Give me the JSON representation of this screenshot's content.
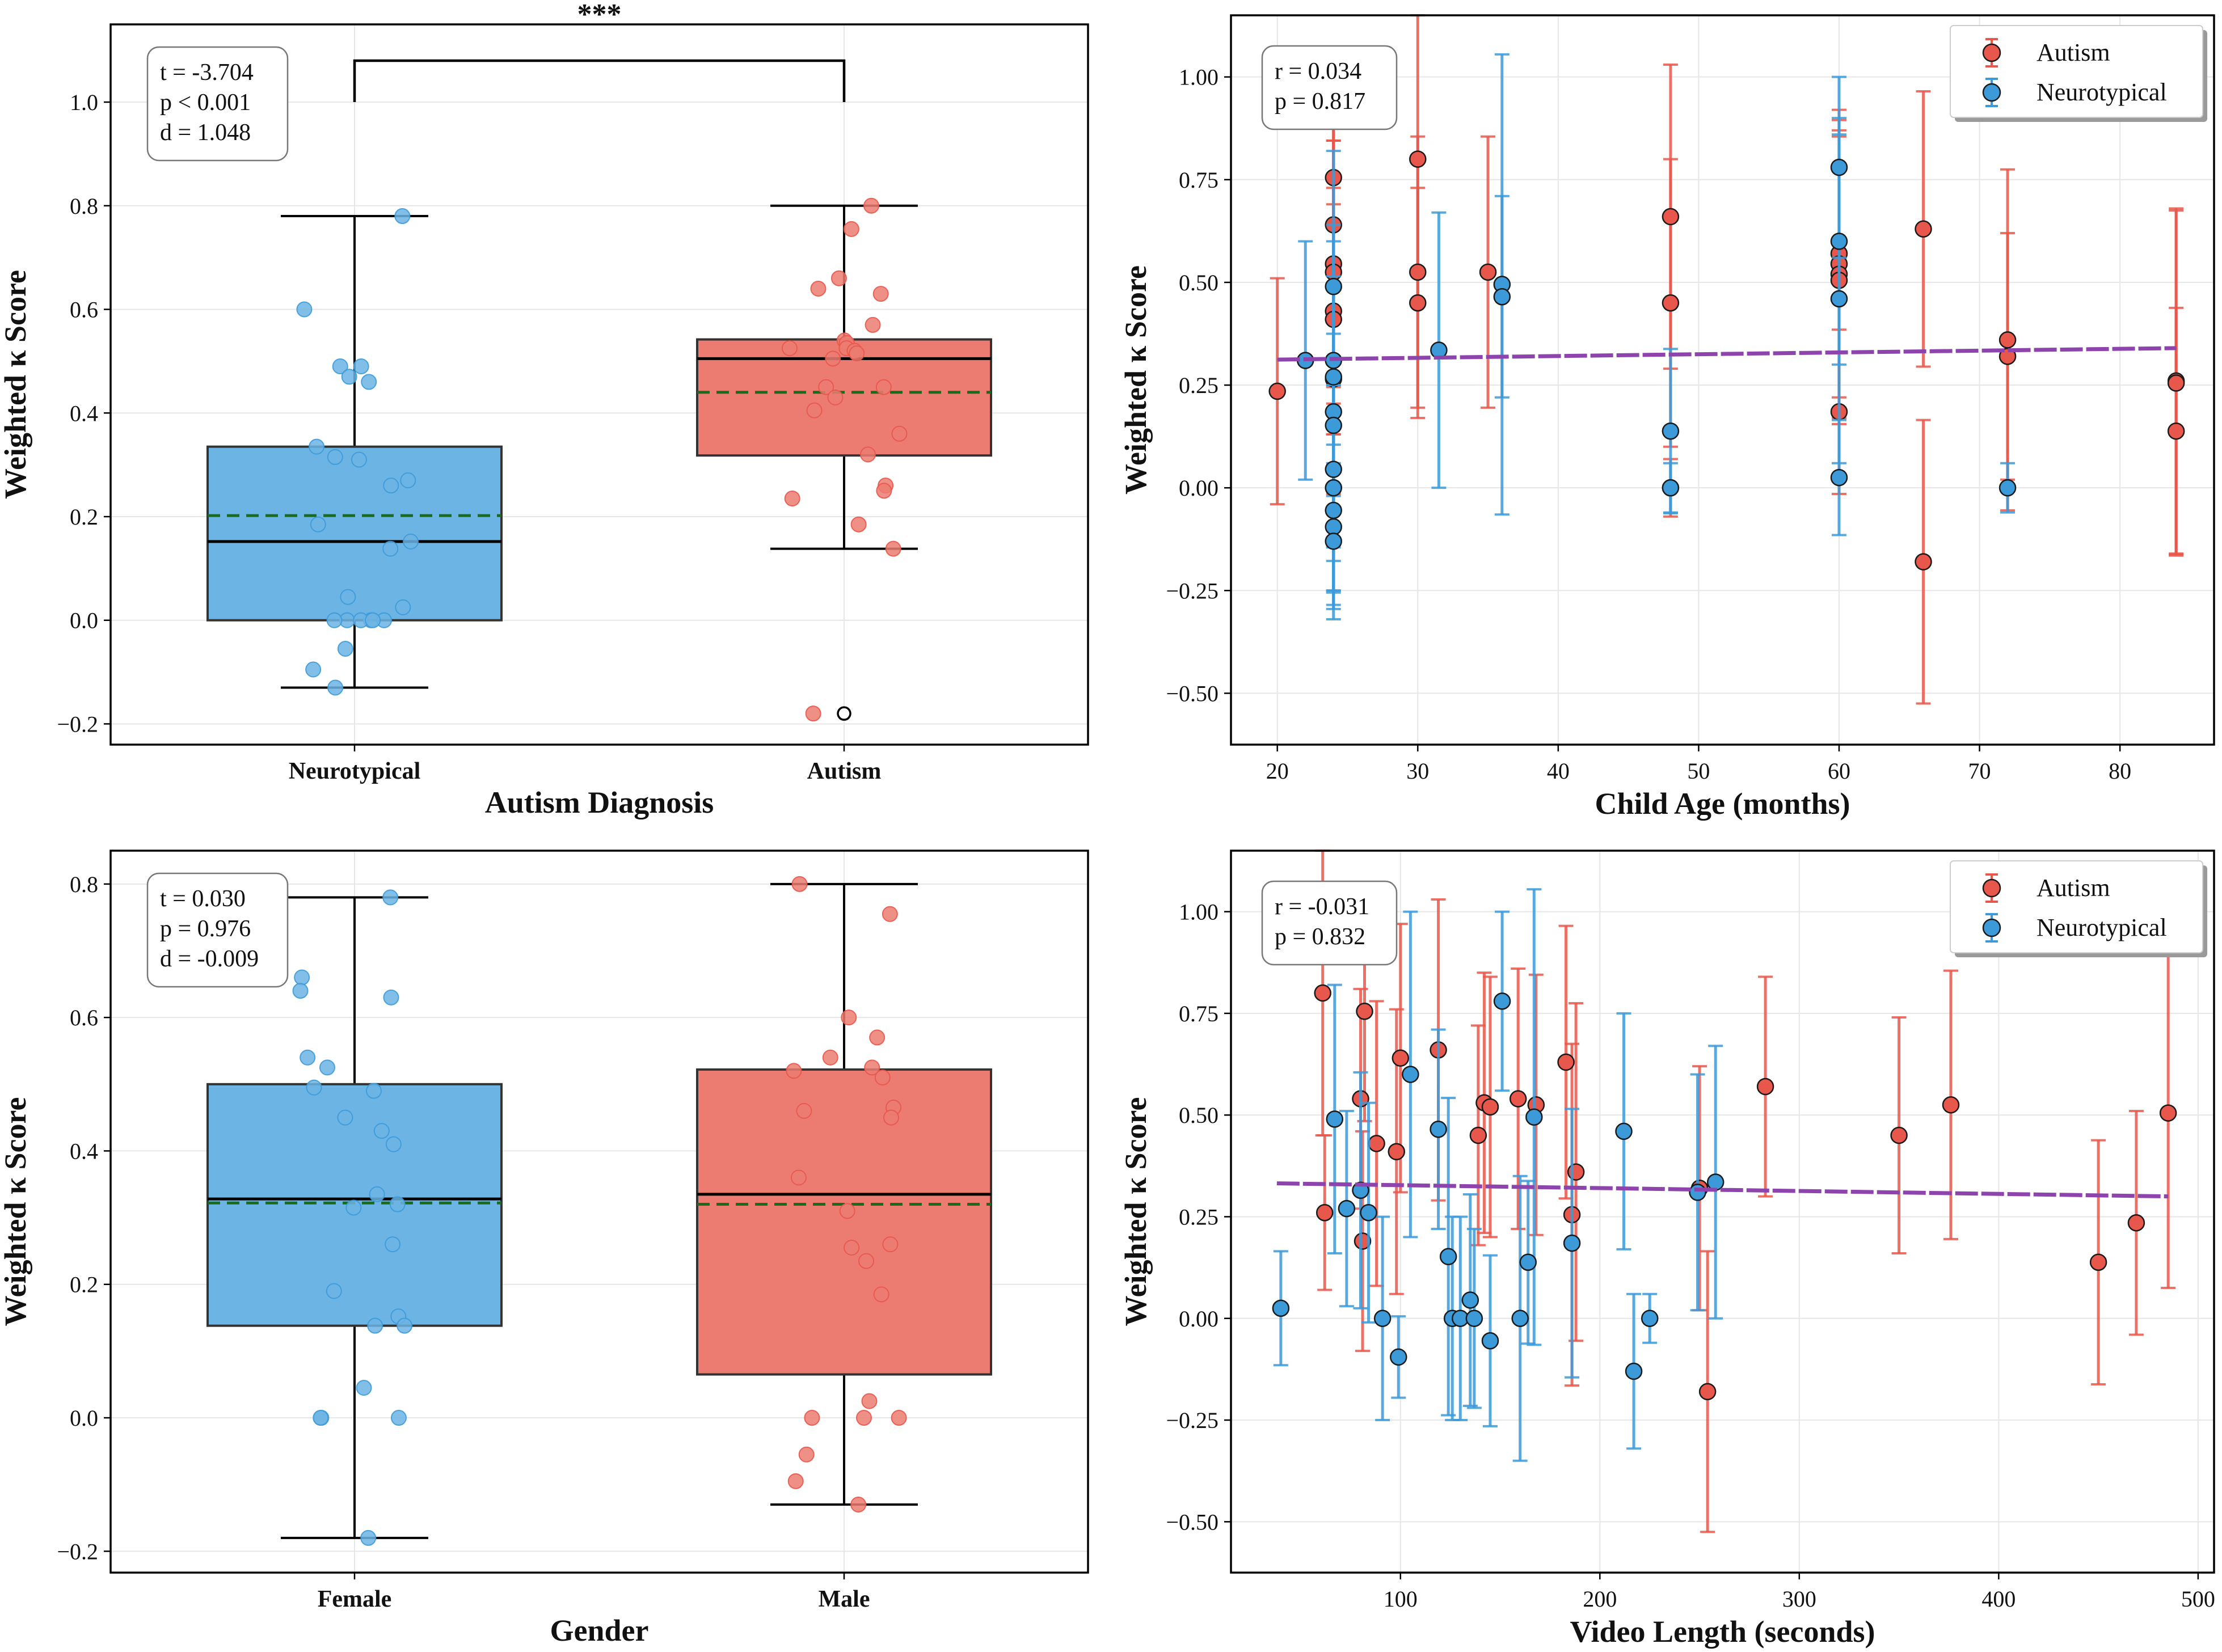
{
  "figure": {
    "background": "#ffffff"
  },
  "colors": {
    "autism": "#e8574b",
    "autism_fill": "#ec7c72",
    "neurotypical": "#3d9ad8",
    "neurotypical_fill": "#6cb4e4",
    "trend": "#8e44ad",
    "mean_line": "#1a6b1a"
  },
  "chart_data": [
    {
      "id": "diagnosis",
      "type": "box",
      "xlabel": "Autism Diagnosis",
      "ylabel": "Weighted κ Score",
      "ylim": [
        -0.24,
        1.15
      ],
      "yticks": [
        -0.2,
        0.0,
        0.2,
        0.4,
        0.6,
        0.8,
        1.0
      ],
      "ytick_labels": [
        "−0.2",
        "0.0",
        "0.2",
        "0.4",
        "0.6",
        "0.8",
        "1.0"
      ],
      "grid": true,
      "stats_text": [
        "t = -3.704",
        "p < 0.001",
        "d = 1.048"
      ],
      "significance": {
        "label": "***",
        "level": 1.08,
        "drop": 0.08
      },
      "groups": [
        {
          "label": "Neurotypical",
          "color": "neurotypical",
          "q1": 0.0,
          "median": 0.152,
          "q3": 0.335,
          "mean": 0.202,
          "whisker_low": -0.13,
          "whisker_high": 0.78,
          "outliers": [],
          "points": [
            0.78,
            0.6,
            0.49,
            0.49,
            0.47,
            0.46,
            0.335,
            0.315,
            0.31,
            0.27,
            0.26,
            0.185,
            0.152,
            0.138,
            0.045,
            0.025,
            0.0,
            0.0,
            0.0,
            0.0,
            0.0,
            0.0,
            -0.055,
            -0.095,
            -0.13
          ]
        },
        {
          "label": "Autism",
          "color": "autism",
          "q1": 0.318,
          "median": 0.505,
          "q3": 0.542,
          "mean": 0.44,
          "whisker_low": 0.138,
          "whisker_high": 0.8,
          "outliers": [
            -0.18
          ],
          "points": [
            0.8,
            0.755,
            0.66,
            0.64,
            0.63,
            0.57,
            0.54,
            0.535,
            0.525,
            0.525,
            0.52,
            0.515,
            0.505,
            0.45,
            0.45,
            0.43,
            0.405,
            0.36,
            0.32,
            0.26,
            0.25,
            0.235,
            0.185,
            0.138,
            -0.18
          ]
        }
      ]
    },
    {
      "id": "age",
      "type": "scatter",
      "xlabel": "Child Age (months)",
      "ylabel": "Weighted κ Score",
      "xlim": [
        16.7,
        86.7
      ],
      "ylim": [
        -0.625,
        1.15
      ],
      "xticks": [
        20,
        30,
        40,
        50,
        60,
        70,
        80
      ],
      "xtick_labels": [
        "20",
        "30",
        "40",
        "50",
        "60",
        "70",
        "80"
      ],
      "yticks": [
        -0.5,
        -0.25,
        0.0,
        0.25,
        0.5,
        0.75,
        1.0
      ],
      "ytick_labels": [
        "−0.50",
        "−0.25",
        "0.00",
        "0.25",
        "0.50",
        "0.75",
        "1.00"
      ],
      "grid": true,
      "stats_text": [
        "r = 0.034",
        "p = 0.817"
      ],
      "legend": {
        "position": "top-right",
        "entries": [
          "Autism",
          "Neurotypical"
        ]
      },
      "trend": {
        "x": [
          20,
          84
        ],
        "y": [
          0.312,
          0.34
        ]
      },
      "series": [
        {
          "name": "Autism",
          "color": "autism",
          "points": [
            [
              20,
              0.235,
              0.275
            ],
            [
              24,
              0.755,
              0.2
            ],
            [
              24,
              0.64,
              0.32
            ],
            [
              24,
              0.545,
              0.3
            ],
            [
              24,
              0.525,
              0.32
            ],
            [
              24,
              0.43,
              0.3
            ],
            [
              24,
              0.41,
              0.28
            ],
            [
              24,
              0.265,
              0.28
            ],
            [
              30,
              0.8,
              0.35
            ],
            [
              30,
              0.525,
              0.33
            ],
            [
              30,
              0.45,
              0.28
            ],
            [
              35,
              0.525,
              0.33
            ],
            [
              48,
              0.66,
              0.37
            ],
            [
              48,
              0.45,
              0.35
            ],
            [
              48,
              0.0,
              0.07
            ],
            [
              60,
              0.57,
              0.35
            ],
            [
              60,
              0.545,
              0.35
            ],
            [
              60,
              0.52,
              0.35
            ],
            [
              60,
              0.505,
              0.35
            ],
            [
              60,
              0.185,
              0.2
            ],
            [
              66,
              0.63,
              0.335
            ],
            [
              66,
              -0.18,
              0.345
            ],
            [
              72,
              0.36,
              0.415
            ],
            [
              72,
              0.32,
              0.3
            ],
            [
              84,
              0.26,
              0.42
            ],
            [
              84,
              0.255,
              0.42
            ],
            [
              84,
              0.138,
              0.3
            ]
          ]
        },
        {
          "name": "Neurotypical",
          "color": "neurotypical",
          "points": [
            [
              22,
              0.31,
              0.29
            ],
            [
              24,
              0.49,
              0.33
            ],
            [
              24,
              0.31,
              0.33
            ],
            [
              24,
              0.27,
              0.33
            ],
            [
              24,
              0.185,
              0.33
            ],
            [
              24,
              0.152,
              0.33
            ],
            [
              24,
              0.045,
              0.33
            ],
            [
              24,
              0.0,
              0.25
            ],
            [
              24,
              0.0,
              0.25
            ],
            [
              24,
              -0.055,
              0.2
            ],
            [
              24,
              -0.095,
              0.2
            ],
            [
              24,
              -0.13,
              0.19
            ],
            [
              31.5,
              0.335,
              0.335
            ],
            [
              36,
              0.495,
              0.56
            ],
            [
              36,
              0.465,
              0.245
            ],
            [
              48,
              0.138,
              0.2
            ],
            [
              48,
              0.0,
              0.06
            ],
            [
              60,
              0.78,
              0.22
            ],
            [
              60,
              0.6,
              0.3
            ],
            [
              60,
              0.46,
              0.4
            ],
            [
              60,
              0.025,
              0.14
            ],
            [
              72,
              0.0,
              0.06
            ]
          ]
        }
      ]
    },
    {
      "id": "gender",
      "type": "box",
      "xlabel": "Gender",
      "ylabel": "Weighted κ Score",
      "ylim": [
        -0.232,
        0.85
      ],
      "yticks": [
        -0.2,
        0.0,
        0.2,
        0.4,
        0.6,
        0.8
      ],
      "ytick_labels": [
        "−0.2",
        "0.0",
        "0.2",
        "0.4",
        "0.6",
        "0.8"
      ],
      "grid": true,
      "stats_text": [
        "t = 0.030",
        "p = 0.976",
        "d = -0.009"
      ],
      "groups": [
        {
          "label": "Female",
          "color": "neurotypical",
          "q1": 0.138,
          "median": 0.328,
          "q3": 0.5,
          "mean": 0.322,
          "whisker_low": -0.18,
          "whisker_high": 0.78,
          "outliers": [],
          "points": [
            0.78,
            0.66,
            0.64,
            0.63,
            0.54,
            0.525,
            0.495,
            0.49,
            0.45,
            0.43,
            0.41,
            0.335,
            0.32,
            0.315,
            0.26,
            0.19,
            0.152,
            0.138,
            0.138,
            0.045,
            0.0,
            0.0,
            0.0,
            -0.18
          ]
        },
        {
          "label": "Male",
          "color": "autism",
          "q1": 0.065,
          "median": 0.335,
          "q3": 0.522,
          "mean": 0.32,
          "whisker_low": -0.13,
          "whisker_high": 0.8,
          "outliers": [],
          "points": [
            0.8,
            0.755,
            0.6,
            0.57,
            0.54,
            0.525,
            0.52,
            0.51,
            0.465,
            0.46,
            0.45,
            0.36,
            0.31,
            0.26,
            0.255,
            0.235,
            0.185,
            0.025,
            0.0,
            0.0,
            0.0,
            -0.055,
            -0.095,
            -0.13
          ]
        }
      ]
    },
    {
      "id": "video",
      "type": "scatter",
      "xlabel": "Video Length (seconds)",
      "ylabel": "Weighted κ Score",
      "xlim": [
        15,
        508
      ],
      "ylim": [
        -0.625,
        1.15
      ],
      "xticks": [
        100,
        200,
        300,
        400,
        500
      ],
      "xtick_labels": [
        "100",
        "200",
        "300",
        "400",
        "500"
      ],
      "yticks": [
        -0.5,
        -0.25,
        0.0,
        0.25,
        0.5,
        0.75,
        1.0
      ],
      "ytick_labels": [
        "−0.50",
        "−0.25",
        "0.00",
        "0.25",
        "0.50",
        "0.75",
        "1.00"
      ],
      "grid": true,
      "stats_text": [
        "r = -0.031",
        "p = 0.832"
      ],
      "legend": {
        "position": "top-right",
        "entries": [
          "Autism",
          "Neurotypical"
        ]
      },
      "trend": {
        "x": [
          38,
          485
        ],
        "y": [
          0.332,
          0.3
        ]
      },
      "series": [
        {
          "name": "Autism",
          "color": "autism",
          "points": [
            [
              61,
              0.8,
              0.35
            ],
            [
              62,
              0.26,
              0.19
            ],
            [
              80,
              0.54,
              0.27
            ],
            [
              81,
              0.19,
              0.27
            ],
            [
              82,
              0.755,
              0.27
            ],
            [
              88,
              0.43,
              0.35
            ],
            [
              98,
              0.41,
              0.35
            ],
            [
              100,
              0.64,
              0.33
            ],
            [
              119,
              0.66,
              0.37
            ],
            [
              139,
              0.45,
              0.27
            ],
            [
              142,
              0.53,
              0.32
            ],
            [
              145,
              0.52,
              0.32
            ],
            [
              159,
              0.54,
              0.32
            ],
            [
              168,
              0.525,
              0.32
            ],
            [
              183,
              0.63,
              0.335
            ],
            [
              186,
              0.255,
              0.42
            ],
            [
              188,
              0.36,
              0.415
            ],
            [
              250,
              0.32,
              0.3
            ],
            [
              254,
              -0.18,
              0.345
            ],
            [
              283,
              0.57,
              0.27
            ],
            [
              350,
              0.45,
              0.29
            ],
            [
              376,
              0.525,
              0.33
            ],
            [
              450,
              0.138,
              0.3
            ],
            [
              469,
              0.235,
              0.275
            ],
            [
              485,
              0.505,
              0.43
            ]
          ]
        },
        {
          "name": "Neurotypical",
          "color": "neurotypical",
          "points": [
            [
              40,
              0.025,
              0.14
            ],
            [
              67,
              0.49,
              0.33
            ],
            [
              73,
              0.27,
              0.24
            ],
            [
              80,
              0.315,
              0.29
            ],
            [
              84,
              0.26,
              0.27
            ],
            [
              91,
              0.0,
              0.25
            ],
            [
              99,
              -0.095,
              0.1
            ],
            [
              105,
              0.6,
              0.4
            ],
            [
              119,
              0.465,
              0.245
            ],
            [
              124,
              0.152,
              0.39
            ],
            [
              126,
              0.0,
              0.25
            ],
            [
              130,
              0.0,
              0.25
            ],
            [
              135,
              0.045,
              0.26
            ],
            [
              137,
              0.0,
              0.22
            ],
            [
              145,
              -0.055,
              0.21
            ],
            [
              151,
              0.78,
              0.22
            ],
            [
              160,
              0.0,
              0.35
            ],
            [
              164,
              0.138,
              0.2
            ],
            [
              167,
              0.495,
              0.56
            ],
            [
              186,
              0.185,
              0.33
            ],
            [
              212,
              0.46,
              0.29
            ],
            [
              217,
              -0.13,
              0.19
            ],
            [
              225,
              0.0,
              0.06
            ],
            [
              249,
              0.31,
              0.29
            ],
            [
              258,
              0.335,
              0.335
            ]
          ]
        }
      ]
    }
  ]
}
